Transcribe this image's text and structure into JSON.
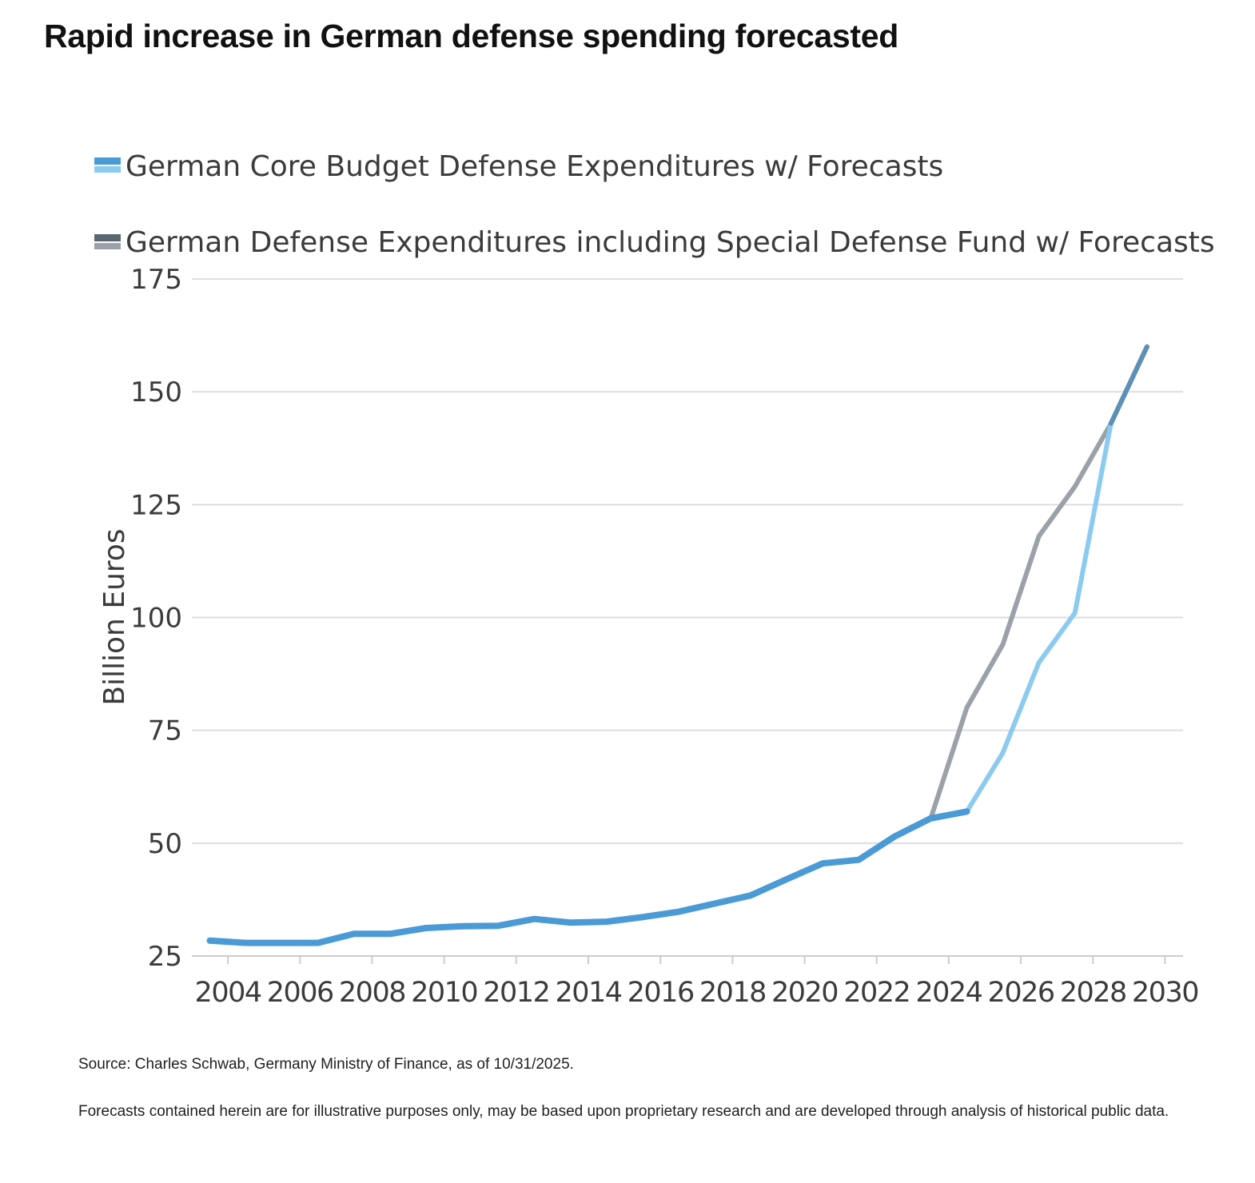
{
  "page": {
    "title": "Rapid increase in German defense spending forecasted",
    "source": "Source: Charles Schwab, Germany Ministry of Finance, as of 10/31/2025.",
    "disclaimer": "Forecasts contained herein are for illustrative purposes only, may be based upon proprietary research and are developed through analysis of historical public data."
  },
  "chart_data": {
    "type": "line",
    "title": "",
    "xlabel": "",
    "ylabel": "Billion Euros",
    "xlim": [
      2003,
      2030.5
    ],
    "ylim": [
      25,
      175
    ],
    "yticks": [
      25,
      50,
      75,
      100,
      125,
      150,
      175
    ],
    "xticks": [
      2004,
      2006,
      2008,
      2010,
      2012,
      2014,
      2016,
      2018,
      2020,
      2022,
      2024,
      2026,
      2028,
      2030
    ],
    "grid": "horizontal",
    "legend_position": "top-left",
    "series": [
      {
        "name": "German Defense Expenditures including Special Defense Fund w/ Forecasts",
        "color": "#9aa1a8",
        "x": [
          2023.5,
          2024.5,
          2025.5,
          2026.5,
          2027.5,
          2028.5,
          2029.5
        ],
        "values": [
          55.5,
          80,
          94,
          118,
          129,
          143,
          160
        ]
      },
      {
        "name": "German Core Budget Defense Expenditures w/ Forecasts",
        "color": "#4a9ad6",
        "forecast_color": "#8ccbf0",
        "forecast_from": 2024.5,
        "x": [
          2003.5,
          2004.5,
          2005.5,
          2006.5,
          2007.5,
          2008.5,
          2009.5,
          2010.5,
          2011.5,
          2012.5,
          2013.5,
          2014.5,
          2015.5,
          2016.5,
          2017.5,
          2018.5,
          2019.5,
          2020.5,
          2021.5,
          2022.5,
          2023.5,
          2024.5,
          2025.5,
          2026.5,
          2027.5,
          2028.5,
          2029.5
        ],
        "values": [
          28.4,
          27.9,
          27.9,
          27.9,
          29.9,
          29.9,
          31.2,
          31.6,
          31.7,
          33.2,
          32.4,
          32.6,
          33.6,
          34.8,
          36.6,
          38.4,
          42,
          45.5,
          46.3,
          51.5,
          55.5,
          57,
          70,
          90,
          101,
          143,
          160
        ]
      }
    ]
  }
}
